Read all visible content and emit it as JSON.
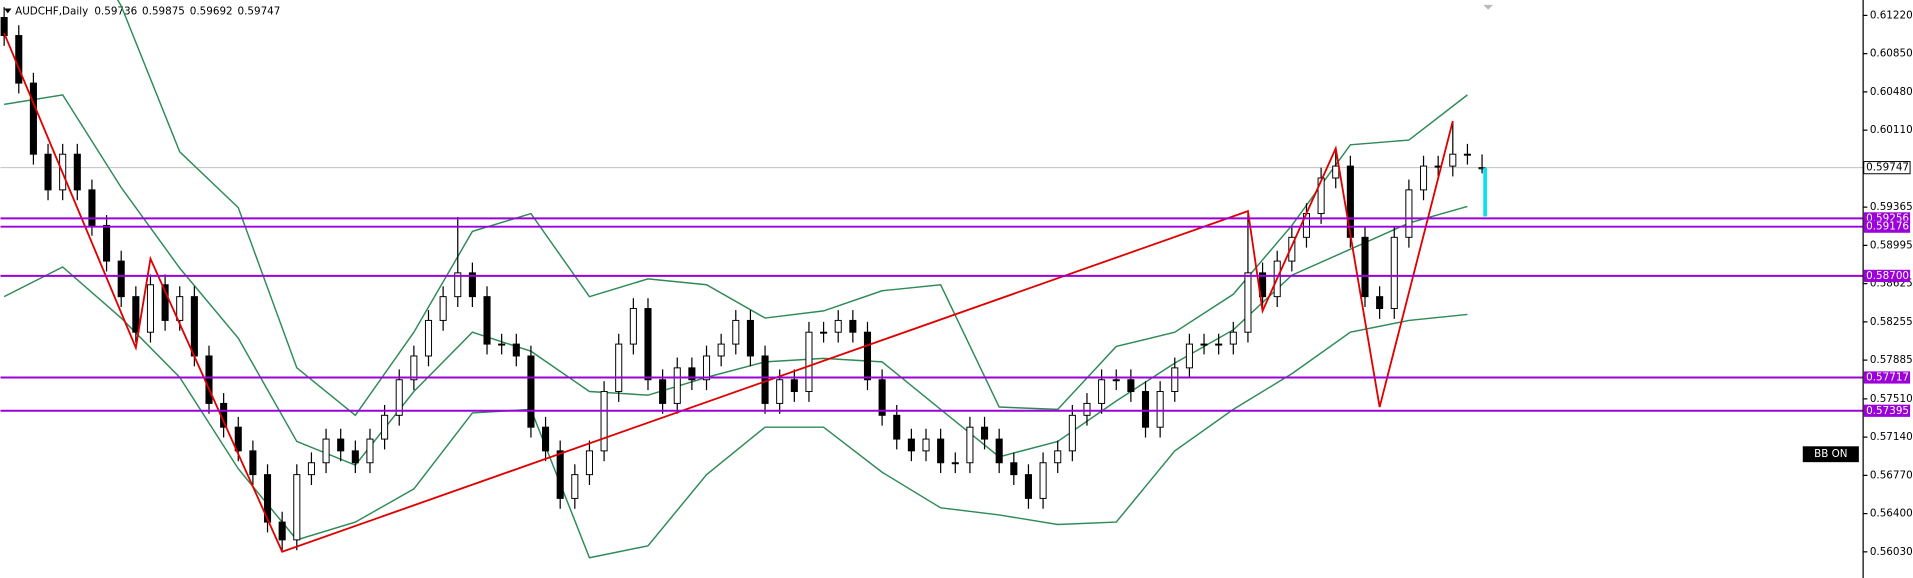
{
  "chart_data": {
    "type": "candlestick",
    "symbol": "AUDCHF,Daily",
    "header_values": [
      0.59736,
      0.59875,
      0.59692,
      0.59747
    ],
    "ylim": [
      0.55777,
      0.61369
    ],
    "yticks": [
      {
        "value": 0.6122,
        "label": "0.61220"
      },
      {
        "value": 0.6085,
        "label": "0.60850"
      },
      {
        "value": 0.6048,
        "label": "0.60480"
      },
      {
        "value": 0.6011,
        "label": "0.60110"
      },
      0.59365,
      0.58995,
      0.58625,
      0.58255,
      0.57885,
      {
        "value": 0.5751,
        "label": "0.57510"
      },
      {
        "value": 0.5714,
        "label": "0.57140"
      },
      {
        "value": 0.5677,
        "label": "0.56770"
      },
      {
        "value": 0.564,
        "label": "0.56400"
      },
      {
        "value": 0.5603,
        "label": "0.56030"
      }
    ],
    "last_price": 0.59747,
    "levels": [
      0.59256,
      0.59176,
      {
        "value": 0.587,
        "label": "0.58700"
      },
      0.57717,
      0.57395
    ],
    "level_color": "#9b00d9",
    "candles": {
      "open": [
        0.612,
        0.61025,
        0.60565,
        0.59877,
        0.59532,
        0.59877,
        0.59532,
        0.59188,
        0.58843,
        0.58499,
        0.58155,
        0.58614,
        0.58269,
        0.58499,
        0.57925,
        0.57466,
        0.57236,
        0.57007,
        0.56777,
        0.56318,
        0.56146,
        0.56777,
        0.56892,
        0.57121,
        0.57007,
        0.56892,
        0.57121,
        0.57351,
        0.57695,
        0.57925,
        0.58269,
        0.58499,
        0.58729,
        0.58499,
        0.5804,
        0.5804,
        0.57925,
        0.57236,
        0.57007,
        0.56547,
        0.56777,
        0.57007,
        0.57581,
        0.5804,
        0.58384,
        0.57695,
        0.57466,
        0.5781,
        0.57695,
        0.57925,
        0.5804,
        0.58269,
        0.57925,
        0.57466,
        0.57695,
        0.57581,
        0.58155,
        0.58155,
        0.58269,
        0.58155,
        0.57695,
        0.57351,
        0.57121,
        0.57007,
        0.57121,
        0.56892,
        0.56892,
        0.57236,
        0.57121,
        0.56892,
        0.56777,
        0.56547,
        0.56892,
        0.57007,
        0.57351,
        0.57466,
        0.57695,
        0.57695,
        0.57581,
        0.57236,
        0.57581,
        0.5781,
        0.5804,
        0.5804,
        0.5804,
        0.58155,
        0.58729,
        0.58499,
        0.58843,
        0.59073,
        0.59303,
        0.59647,
        0.59762,
        0.59073,
        0.58499,
        0.58384,
        0.59073,
        0.59532,
        0.59762,
        0.59762,
        0.59877,
        0.59736
      ],
      "high": [
        0.613,
        0.61125,
        0.60665,
        0.59977,
        0.59977,
        0.59977,
        0.59632,
        0.59288,
        0.58943,
        0.58599,
        0.58714,
        0.58714,
        0.58599,
        0.58599,
        0.58025,
        0.57566,
        0.57336,
        0.57107,
        0.56877,
        0.56418,
        0.56877,
        0.56992,
        0.57221,
        0.57221,
        0.57107,
        0.57221,
        0.57451,
        0.57795,
        0.58025,
        0.58369,
        0.58599,
        0.5927,
        0.58829,
        0.58599,
        0.5814,
        0.5814,
        0.58025,
        0.57336,
        0.57107,
        0.56877,
        0.57107,
        0.57681,
        0.5814,
        0.58484,
        0.58484,
        0.57795,
        0.5791,
        0.5791,
        0.58025,
        0.5814,
        0.58369,
        0.58369,
        0.58025,
        0.57795,
        0.57795,
        0.58255,
        0.58255,
        0.58369,
        0.58369,
        0.58255,
        0.57795,
        0.57451,
        0.57221,
        0.57221,
        0.57221,
        0.56992,
        0.57336,
        0.57336,
        0.57221,
        0.56992,
        0.56877,
        0.56992,
        0.57107,
        0.57451,
        0.57566,
        0.57795,
        0.57795,
        0.57795,
        0.57681,
        0.57681,
        0.5791,
        0.5814,
        0.5814,
        0.5814,
        0.58255,
        0.59303,
        0.58829,
        0.58943,
        0.59173,
        0.59403,
        0.59747,
        0.59934,
        0.59862,
        0.59173,
        0.58599,
        0.59173,
        0.59632,
        0.59862,
        0.59862,
        0.60198,
        0.59977,
        0.59875
      ],
      "low": [
        0.60925,
        0.60465,
        0.59777,
        0.59432,
        0.59432,
        0.59432,
        0.59088,
        0.58743,
        0.58399,
        0.58055,
        0.58055,
        0.58169,
        0.58169,
        0.57825,
        0.57366,
        0.57136,
        0.56907,
        0.56677,
        0.56218,
        0.56046,
        0.56046,
        0.56677,
        0.56792,
        0.56907,
        0.56792,
        0.56792,
        0.57021,
        0.57251,
        0.57595,
        0.57825,
        0.58169,
        0.58399,
        0.58399,
        0.5794,
        0.5794,
        0.57825,
        0.57136,
        0.56907,
        0.56447,
        0.56447,
        0.56677,
        0.56907,
        0.57481,
        0.5794,
        0.57595,
        0.57366,
        0.57366,
        0.57595,
        0.57595,
        0.57825,
        0.5794,
        0.57825,
        0.57366,
        0.57366,
        0.57481,
        0.57481,
        0.58055,
        0.58055,
        0.58055,
        0.57595,
        0.57251,
        0.57021,
        0.56907,
        0.56907,
        0.56792,
        0.56792,
        0.56792,
        0.57021,
        0.56792,
        0.56677,
        0.56447,
        0.56447,
        0.56792,
        0.56907,
        0.57251,
        0.57366,
        0.57595,
        0.57481,
        0.57136,
        0.57136,
        0.57481,
        0.5771,
        0.5794,
        0.5794,
        0.5794,
        0.58055,
        0.58399,
        0.58399,
        0.58743,
        0.58973,
        0.59203,
        0.59547,
        0.58973,
        0.58399,
        0.58284,
        0.58284,
        0.58973,
        0.59432,
        0.59662,
        0.59662,
        0.59777,
        0.59692
      ],
      "close": [
        0.61025,
        0.60565,
        0.59877,
        0.59532,
        0.59877,
        0.59532,
        0.59188,
        0.58843,
        0.58499,
        0.58155,
        0.58614,
        0.58269,
        0.58499,
        0.57925,
        0.57466,
        0.57236,
        0.57007,
        0.56777,
        0.56318,
        0.56146,
        0.56777,
        0.56892,
        0.57121,
        0.57007,
        0.56892,
        0.57121,
        0.57351,
        0.57695,
        0.57925,
        0.58269,
        0.58499,
        0.58729,
        0.58499,
        0.5804,
        0.5804,
        0.57925,
        0.57236,
        0.57007,
        0.56547,
        0.56777,
        0.57007,
        0.57581,
        0.5804,
        0.58384,
        0.57695,
        0.57466,
        0.5781,
        0.57695,
        0.57925,
        0.5804,
        0.58269,
        0.57925,
        0.57466,
        0.57695,
        0.57581,
        0.58155,
        0.58155,
        0.58269,
        0.58155,
        0.57695,
        0.57351,
        0.57121,
        0.57007,
        0.57121,
        0.56892,
        0.56892,
        0.57236,
        0.57121,
        0.56892,
        0.56777,
        0.56547,
        0.56892,
        0.57007,
        0.57351,
        0.57466,
        0.57695,
        0.57695,
        0.57581,
        0.57236,
        0.57581,
        0.5781,
        0.5804,
        0.5804,
        0.5804,
        0.58155,
        0.58729,
        0.58499,
        0.58843,
        0.59073,
        0.59303,
        0.59647,
        0.59762,
        0.59073,
        0.58499,
        0.58384,
        0.59073,
        0.59532,
        0.59762,
        0.59762,
        0.59877,
        0.59877,
        0.59747
      ]
    },
    "bollinger": {
      "color": "#2e8b57",
      "x": [
        0,
        4,
        8,
        12,
        16,
        20,
        24,
        28,
        32,
        36,
        40,
        44,
        48,
        52,
        56,
        60,
        64,
        68,
        72,
        76,
        80,
        84,
        88,
        92,
        96,
        100
      ],
      "upper": [
        0.63091,
        0.62287,
        0.61312,
        0.599,
        0.5936,
        0.5781,
        0.57351,
        0.58155,
        0.5913,
        0.59303,
        0.58499,
        0.58671,
        0.58614,
        0.58292,
        0.58361,
        0.58556,
        0.58614,
        0.57431,
        0.57408,
        0.58017,
        0.58155,
        0.58522,
        0.59188,
        0.59968,
        0.60014,
        0.60451
      ],
      "middle": [
        0.60359,
        0.60451,
        0.59555,
        0.58775,
        0.58097,
        0.57098,
        0.56869,
        0.57581,
        0.58155,
        0.57971,
        0.57581,
        0.57546,
        0.57718,
        0.57868,
        0.57902,
        0.57868,
        0.57408,
        0.56949,
        0.57098,
        0.57489,
        0.57856,
        0.58178,
        0.58706,
        0.58958,
        0.59211,
        0.59372
      ],
      "lower": [
        0.58499,
        0.58786,
        0.58292,
        0.57718,
        0.56834,
        0.56146,
        0.56318,
        0.56639,
        0.57374,
        0.57408,
        0.55973,
        0.56088,
        0.56777,
        0.57236,
        0.57236,
        0.568,
        0.56456,
        0.56387,
        0.56295,
        0.56318,
        0.57007,
        0.57408,
        0.57753,
        0.58155,
        0.58269,
        0.58327
      ]
    },
    "zigzag": {
      "color": "#e00000",
      "x": [
        0,
        9,
        10,
        19,
        85,
        86,
        91,
        94,
        99
      ],
      "values": [
        0.61048,
        0.58005,
        0.58866,
        0.56031,
        0.59326,
        0.58361,
        0.59934,
        0.57431,
        0.60198
      ]
    }
  },
  "buttons": [
    "BB ON"
  ]
}
